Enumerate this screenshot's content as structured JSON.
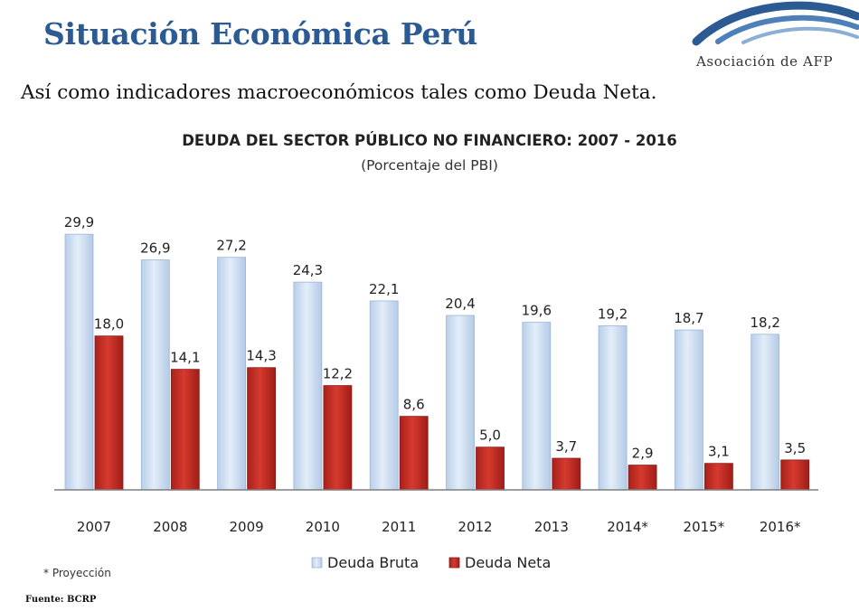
{
  "header": {
    "title": "Situación Económica Perú",
    "logo_text": "Asociación de AFP"
  },
  "lead_text": "Así como indicadores macroeconómicos tales como Deuda Neta.",
  "footnote": "* Proyección",
  "source": "Fuente: BCRP",
  "colors": {
    "title_blue": "#2c5a93",
    "deuda_bruta": "#cfe0f3",
    "deuda_neta": "#c62b22"
  },
  "chart_data": {
    "type": "bar",
    "title": "DEUDA DEL SECTOR PÚBLICO NO FINANCIERO: 2007 - 2016",
    "subtitle": "(Porcentaje del PBI)",
    "categories": [
      "2007",
      "2008",
      "2009",
      "2010",
      "2011",
      "2012",
      "2013",
      "2014*",
      "2015*",
      "2016*"
    ],
    "series": [
      {
        "name": "Deuda Bruta",
        "values": [
          29.9,
          26.9,
          27.2,
          24.3,
          22.1,
          20.4,
          19.6,
          19.2,
          18.7,
          18.2
        ],
        "labels": [
          "29,9",
          "26,9",
          "27,2",
          "24,3",
          "22,1",
          "20,4",
          "19,6",
          "19,2",
          "18,7",
          "18,2"
        ]
      },
      {
        "name": "Deuda Neta",
        "values": [
          18.0,
          14.1,
          14.3,
          12.2,
          8.6,
          5.0,
          3.7,
          2.9,
          3.1,
          3.5
        ],
        "labels": [
          "18,0",
          "14,1",
          "14,3",
          "12,2",
          "8,6",
          "5,0",
          "3,7",
          "2,9",
          "3,1",
          "3,5"
        ]
      }
    ],
    "ylim": [
      0,
      30
    ],
    "grid": false,
    "legend_position": "bottom"
  }
}
